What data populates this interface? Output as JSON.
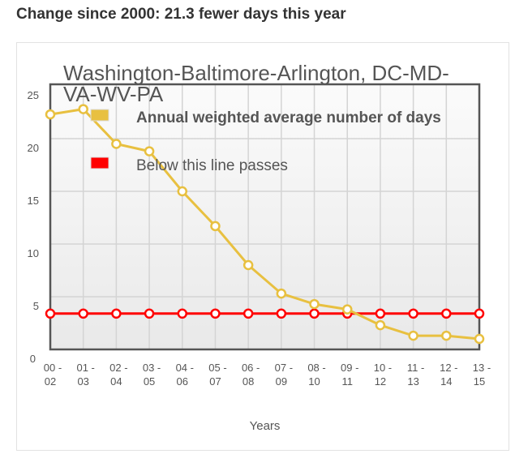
{
  "header": {
    "change_text": "Change since 2000: 21.3 fewer days this year"
  },
  "chart_data": {
    "type": "line",
    "title_line1": "Washington-Baltimore-Arlington, DC-MD-",
    "title_line2": "VA-WV-PA",
    "xlabel": "Years",
    "ylabel": "",
    "ylim": [
      0,
      25
    ],
    "yticks": [
      "0",
      "5",
      "10",
      "15",
      "20",
      "25"
    ],
    "categories": [
      [
        "00 -",
        "02"
      ],
      [
        "01 -",
        "03"
      ],
      [
        "02 -",
        "04"
      ],
      [
        "03 -",
        "05"
      ],
      [
        "04 -",
        "06"
      ],
      [
        "05 -",
        "07"
      ],
      [
        "06 -",
        "08"
      ],
      [
        "07 -",
        "09"
      ],
      [
        "08 -",
        "10"
      ],
      [
        "09 -",
        "11"
      ],
      [
        "10 -",
        "12"
      ],
      [
        "11 -",
        "13"
      ],
      [
        "12 -",
        "14"
      ],
      [
        "13 -",
        "15"
      ]
    ],
    "legend_position": "top-left inside plot",
    "grid": true,
    "series": [
      {
        "name": "Annual weighted average number of days",
        "color": "#e8c040",
        "values": [
          22.3,
          22.8,
          19.5,
          18.8,
          15.0,
          11.7,
          8.0,
          5.3,
          4.3,
          3.8,
          2.3,
          1.3,
          1.3,
          1.0
        ]
      },
      {
        "name": "Below this line passes",
        "color": "#ff0000",
        "values": [
          3.4,
          3.4,
          3.4,
          3.4,
          3.4,
          3.4,
          3.4,
          3.4,
          3.4,
          3.4,
          3.4,
          3.4,
          3.4,
          3.4
        ]
      }
    ]
  }
}
